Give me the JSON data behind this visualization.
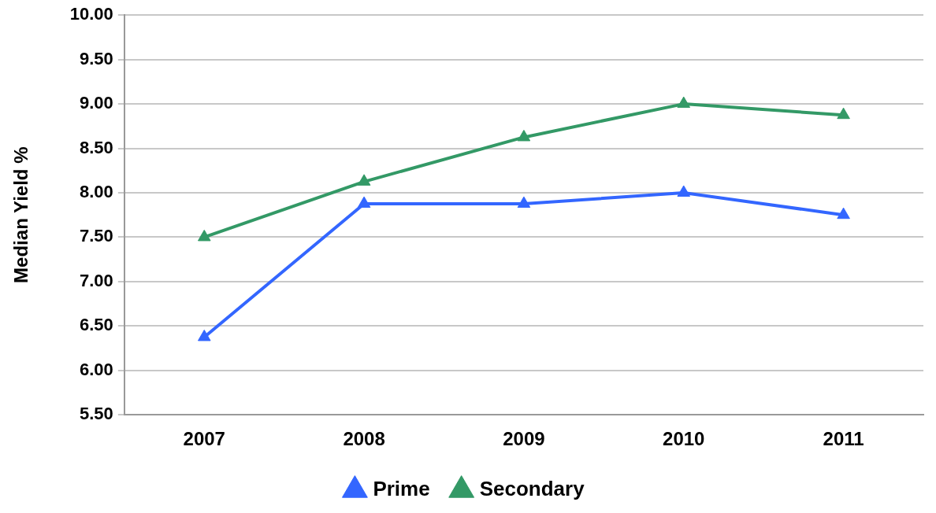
{
  "chart_data": {
    "type": "line",
    "ylabel": "Median Yield %",
    "categories": [
      "2007",
      "2008",
      "2009",
      "2010",
      "2011"
    ],
    "series": [
      {
        "name": "Prime",
        "color": "#3366ff",
        "values": [
          6.375,
          7.875,
          7.875,
          8.0,
          7.75
        ]
      },
      {
        "name": "Secondary",
        "color": "#339966",
        "values": [
          7.5,
          8.125,
          8.625,
          9.0,
          8.875
        ]
      }
    ],
    "ylim": [
      5.5,
      10
    ],
    "yticks": [
      {
        "value": 5.5,
        "label": "5.50"
      },
      {
        "value": 6,
        "label": "6.00"
      },
      {
        "value": 6.5,
        "label": "6.50"
      },
      {
        "value": 7,
        "label": "7.00"
      },
      {
        "value": 7.5,
        "label": "7.50"
      },
      {
        "value": 8,
        "label": "8.00"
      },
      {
        "value": 8.5,
        "label": "8.50"
      },
      {
        "value": 9,
        "label": "9.00"
      },
      {
        "value": 9.5,
        "label": "9.50"
      },
      {
        "value": 10,
        "label": "10.00"
      }
    ],
    "grid": "y",
    "legend": "bottom",
    "marker": "triangle",
    "line_style": "solid"
  }
}
